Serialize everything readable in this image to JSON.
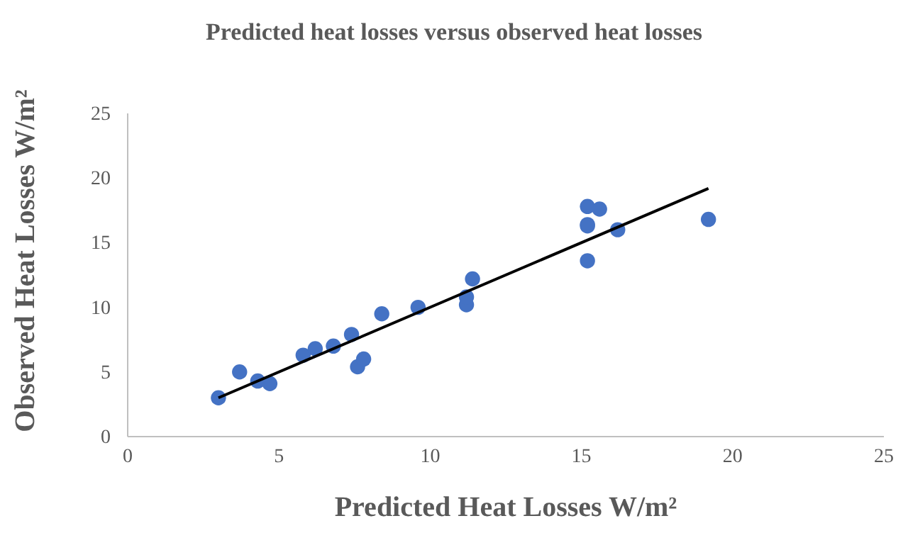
{
  "chart_data": {
    "type": "scatter",
    "title": "Predicted heat losses versus observed heat losses",
    "xlabel": "Predicted Heat Losses W/m²",
    "ylabel": "Observed Heat Losses W/m²",
    "xlim": [
      0,
      25
    ],
    "ylim": [
      0,
      25
    ],
    "xticks": [
      0,
      5,
      10,
      15,
      20,
      25
    ],
    "yticks": [
      0,
      5,
      10,
      15,
      20,
      25
    ],
    "grid": false,
    "series": [
      {
        "marker": "circle",
        "color": "#4472c4",
        "x": [
          3.0,
          3.7,
          4.3,
          4.7,
          5.8,
          6.2,
          6.8,
          7.4,
          7.6,
          7.8,
          8.4,
          9.6,
          11.2,
          11.2,
          11.4,
          15.2,
          15.6,
          15.2,
          15.2,
          16.2,
          15.2,
          19.2
        ],
        "values": [
          3.0,
          5.0,
          4.3,
          4.1,
          6.3,
          6.8,
          7.0,
          7.9,
          5.4,
          6.0,
          9.5,
          10.0,
          10.2,
          10.8,
          12.2,
          17.8,
          17.6,
          16.4,
          16.3,
          16.0,
          13.6,
          16.8
        ]
      },
      {
        "type": "line",
        "color": "#000000",
        "x": [
          3.0,
          19.2
        ],
        "values": [
          3.0,
          19.2
        ]
      }
    ]
  }
}
